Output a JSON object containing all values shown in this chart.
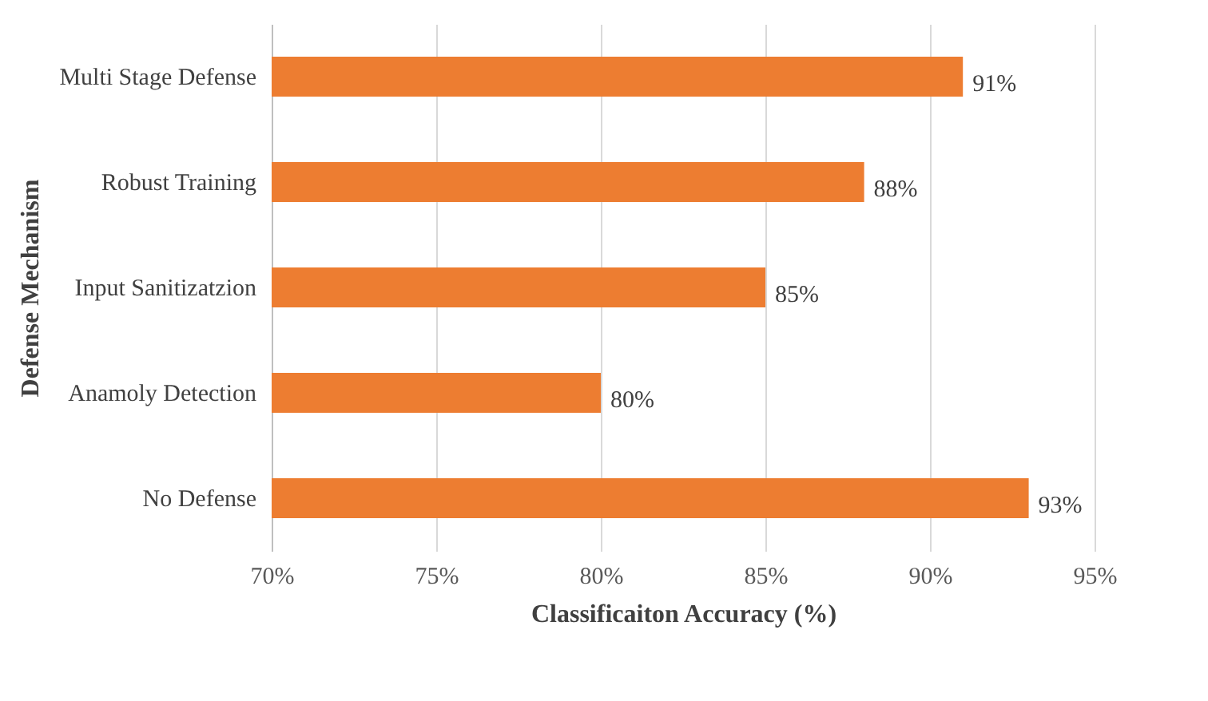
{
  "chart_data": {
    "type": "bar",
    "orientation": "horizontal",
    "xlabel": "Classificaiton Accuracy (%)",
    "ylabel": "Defense Mechanism",
    "categories": [
      "Multi Stage Defense",
      "Robust Training",
      "Input Sanitizatzion",
      "Anamoly Detection",
      "No Defense"
    ],
    "values": [
      91,
      88,
      85,
      80,
      93
    ],
    "color": "#ed7d31",
    "value_labels": [
      "91%",
      "88%",
      "85%",
      "80%",
      "93%"
    ],
    "xlim": [
      70,
      95
    ],
    "xticks": [
      {
        "value": 70,
        "label": "70%"
      },
      {
        "value": 75,
        "label": "75%"
      },
      {
        "value": 80,
        "label": "80%"
      },
      {
        "value": 85,
        "label": "85%"
      },
      {
        "value": 90,
        "label": "90%"
      },
      {
        "value": 95,
        "label": "95%"
      }
    ],
    "grid": "x"
  }
}
